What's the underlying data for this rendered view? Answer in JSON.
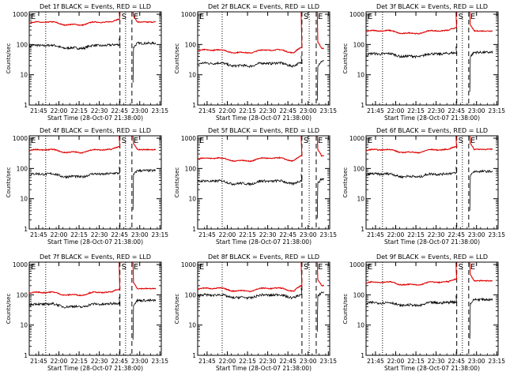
{
  "colors": {
    "events": "#000000",
    "lld": "#e00000",
    "axes": "#000000",
    "background": "#ffffff"
  },
  "shared": {
    "ylabel": "Counts/sec",
    "xlabel": "Start Time (28-Oct-07 21:38:00)",
    "xticks": [
      "21:45",
      "22:00",
      "22:15",
      "22:30",
      "22:45",
      "23:00",
      "23:15"
    ],
    "yticks": [
      "1",
      "10",
      "100",
      "1000"
    ],
    "markers": {
      "S": "S",
      "E": "E"
    }
  },
  "chart_data": [
    {
      "type": "line",
      "title": "Det 1f BLACK = Events, RED = LLD",
      "x_range_min": [
        0,
        98
      ],
      "ylim": [
        1,
        1200
      ],
      "yscale": "log",
      "markers": {
        "S_min": 67.3,
        "E_min": 76.2,
        "dotted_min": [
          12.2,
          71.5
        ]
      },
      "series": [
        {
          "name": "Events",
          "base": 85,
          "end": 110
        },
        {
          "name": "LLD",
          "base": 500,
          "end": 550
        }
      ]
    },
    {
      "type": "line",
      "title": "Det 2f BLACK = Events, RED = LLD",
      "x_range_min": [
        0,
        98
      ],
      "ylim": [
        1,
        1200
      ],
      "yscale": "log",
      "markers": {
        "S_min": 77.4,
        "E_min": 88.0,
        "dotted_min": [
          18.2,
          82.8
        ]
      },
      "series": [
        {
          "name": "Events",
          "base": 22,
          "end": 28
        },
        {
          "name": "LLD",
          "base": 60,
          "end": 75
        }
      ]
    },
    {
      "type": "line",
      "title": "Det 3f BLACK = Events, RED = LLD",
      "x_range_min": [
        0,
        98
      ],
      "ylim": [
        1,
        1200
      ],
      "yscale": "log",
      "markers": {
        "S_min": 67.3,
        "E_min": 76.2,
        "dotted_min": [
          12.2,
          71.5
        ]
      },
      "series": [
        {
          "name": "Events",
          "base": 45,
          "end": 55
        },
        {
          "name": "LLD",
          "base": 260,
          "end": 280
        }
      ]
    },
    {
      "type": "line",
      "title": "Det 4f BLACK = Events, RED = LLD",
      "x_range_min": [
        0,
        98
      ],
      "ylim": [
        1,
        1200
      ],
      "yscale": "log",
      "markers": {
        "S_min": 67.3,
        "E_min": 76.2,
        "dotted_min": [
          12.2,
          71.5
        ]
      },
      "series": [
        {
          "name": "Events",
          "base": 60,
          "end": 85
        },
        {
          "name": "LLD",
          "base": 380,
          "end": 420
        }
      ]
    },
    {
      "type": "line",
      "title": "Det 5f BLACK = Events, RED = LLD",
      "x_range_min": [
        0,
        98
      ],
      "ylim": [
        1,
        1200
      ],
      "yscale": "log",
      "markers": {
        "S_min": 77.4,
        "E_min": 88.0,
        "dotted_min": [
          18.2,
          82.8
        ]
      },
      "series": [
        {
          "name": "Events",
          "base": 35,
          "end": 45
        },
        {
          "name": "LLD",
          "base": 200,
          "end": 260
        }
      ]
    },
    {
      "type": "line",
      "title": "Det 6f BLACK = Events, RED = LLD",
      "x_range_min": [
        0,
        98
      ],
      "ylim": [
        1,
        1200
      ],
      "yscale": "log",
      "markers": {
        "S_min": 67.3,
        "E_min": 76.2,
        "dotted_min": [
          12.2,
          71.5
        ]
      },
      "series": [
        {
          "name": "Events",
          "base": 60,
          "end": 80
        },
        {
          "name": "LLD",
          "base": 380,
          "end": 430
        }
      ]
    },
    {
      "type": "line",
      "title": "Det 7f BLACK = Events, RED = LLD",
      "x_range_min": [
        0,
        98
      ],
      "ylim": [
        1,
        1200
      ],
      "yscale": "log",
      "markers": {
        "S_min": 67.3,
        "E_min": 76.2,
        "dotted_min": [
          12.2,
          71.5
        ]
      },
      "series": [
        {
          "name": "Events",
          "base": 45,
          "end": 65
        },
        {
          "name": "LLD",
          "base": 110,
          "end": 160
        }
      ]
    },
    {
      "type": "line",
      "title": "Det 8f BLACK = Events, RED = LLD",
      "x_range_min": [
        0,
        98
      ],
      "ylim": [
        1,
        1200
      ],
      "yscale": "log",
      "markers": {
        "S_min": 77.4,
        "E_min": 88.0,
        "dotted_min": [
          18.2,
          82.8
        ]
      },
      "series": [
        {
          "name": "Events",
          "base": 90,
          "end": 120
        },
        {
          "name": "LLD",
          "base": 150,
          "end": 200
        }
      ]
    },
    {
      "type": "line",
      "title": "Det 9f BLACK = Events, RED = LLD",
      "x_range_min": [
        0,
        98
      ],
      "ylim": [
        1,
        1200
      ],
      "yscale": "log",
      "markers": {
        "S_min": 67.3,
        "E_min": 76.2,
        "dotted_min": [
          12.2,
          71.5
        ]
      },
      "series": [
        {
          "name": "Events",
          "base": 50,
          "end": 70
        },
        {
          "name": "LLD",
          "base": 240,
          "end": 290
        }
      ]
    }
  ]
}
